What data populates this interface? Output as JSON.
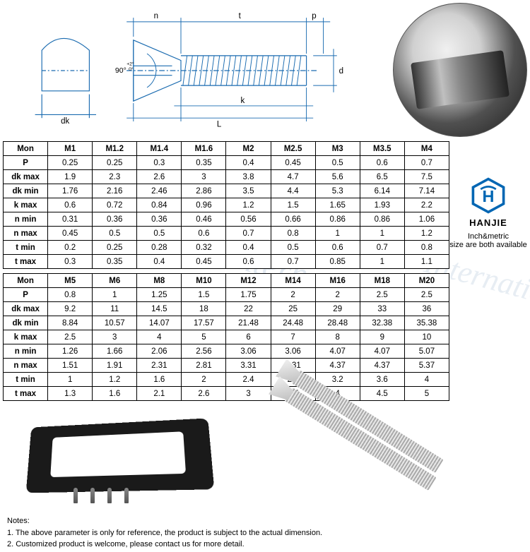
{
  "watermark_text": "Hanjie International",
  "watermark_text2": "International",
  "diagram": {
    "labels": {
      "n": "n",
      "t": "t",
      "p": "p",
      "d": "d",
      "k": "k",
      "L": "L",
      "dk": "dk",
      "angle": "90°",
      "angle_tol": "+2°\n  0°"
    }
  },
  "table1": {
    "header": [
      "Mon",
      "M1",
      "M1.2",
      "M1.4",
      "M1.6",
      "M2",
      "M2.5",
      "M3",
      "M3.5",
      "M4"
    ],
    "rows": [
      [
        "P",
        "0.25",
        "0.25",
        "0.3",
        "0.35",
        "0.4",
        "0.45",
        "0.5",
        "0.6",
        "0.7"
      ],
      [
        "dk max",
        "1.9",
        "2.3",
        "2.6",
        "3",
        "3.8",
        "4.7",
        "5.6",
        "6.5",
        "7.5"
      ],
      [
        "dk min",
        "1.76",
        "2.16",
        "2.46",
        "2.86",
        "3.5",
        "4.4",
        "5.3",
        "6.14",
        "7.14"
      ],
      [
        "k max",
        "0.6",
        "0.72",
        "0.84",
        "0.96",
        "1.2",
        "1.5",
        "1.65",
        "1.93",
        "2.2"
      ],
      [
        "n min",
        "0.31",
        "0.36",
        "0.36",
        "0.46",
        "0.56",
        "0.66",
        "0.86",
        "0.86",
        "1.06"
      ],
      [
        "n max",
        "0.45",
        "0.5",
        "0.5",
        "0.6",
        "0.7",
        "0.8",
        "1",
        "1",
        "1.2"
      ],
      [
        "t min",
        "0.2",
        "0.25",
        "0.28",
        "0.32",
        "0.4",
        "0.5",
        "0.6",
        "0.7",
        "0.8"
      ],
      [
        "t max",
        "0.3",
        "0.35",
        "0.4",
        "0.45",
        "0.6",
        "0.7",
        "0.85",
        "1",
        "1.1"
      ]
    ]
  },
  "table2": {
    "header": [
      "Mon",
      "M5",
      "M6",
      "M8",
      "M10",
      "M12",
      "M14",
      "M16",
      "M18",
      "M20"
    ],
    "rows": [
      [
        "P",
        "0.8",
        "1",
        "1.25",
        "1.5",
        "1.75",
        "2",
        "2",
        "2.5",
        "2.5"
      ],
      [
        "dk max",
        "9.2",
        "11",
        "14.5",
        "18",
        "22",
        "25",
        "29",
        "33",
        "36"
      ],
      [
        "dk min",
        "8.84",
        "10.57",
        "14.07",
        "17.57",
        "21.48",
        "24.48",
        "28.48",
        "32.38",
        "35.38"
      ],
      [
        "k max",
        "2.5",
        "3",
        "4",
        "5",
        "6",
        "7",
        "8",
        "9",
        "10"
      ],
      [
        "n min",
        "1.26",
        "1.66",
        "2.06",
        "2.56",
        "3.06",
        "3.06",
        "4.07",
        "4.07",
        "5.07"
      ],
      [
        "n max",
        "1.51",
        "1.91",
        "2.31",
        "2.81",
        "3.31",
        "3.31",
        "4.37",
        "4.37",
        "5.37"
      ],
      [
        "t min",
        "1",
        "1.2",
        "1.6",
        "2",
        "2.4",
        "2.8",
        "3.2",
        "3.6",
        "4"
      ],
      [
        "t max",
        "1.3",
        "1.6",
        "2.1",
        "2.6",
        "3",
        "3.5",
        "4",
        "4.5",
        "5"
      ]
    ]
  },
  "brand": {
    "name": "HANJIE",
    "tagline1": "Inch&metric",
    "tagline2": "size are both available",
    "logo_color": "#0066b3"
  },
  "notes": {
    "title": "Notes:",
    "line1": "1. The above parameter is only for reference, the product is subject to the actual dimension.",
    "line2": "2. Customized product is welcome, please contact us for more detail."
  },
  "colors": {
    "border": "#000000",
    "text": "#000000",
    "watermark": "#d0dce8",
    "bg": "#ffffff"
  }
}
